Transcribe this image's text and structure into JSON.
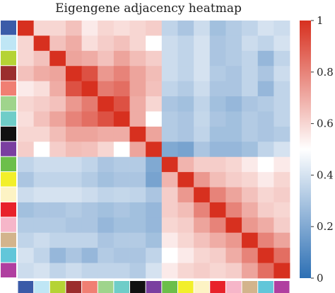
{
  "chart_data": {
    "type": "heatmap",
    "title": "Eigengene adjacency heatmap",
    "xlabel": "",
    "ylabel": "",
    "n": 17,
    "module_colors": [
      "#3b5ba8",
      "#bfe6f5",
      "#b5d335",
      "#9b2d2d",
      "#f07f73",
      "#9fd48c",
      "#6fcdc8",
      "#111111",
      "#7a3fa0",
      "#6cbf4a",
      "#f2ef2a",
      "#fdf3c4",
      "#e8222a",
      "#f6b6c9",
      "#d3b48c",
      "#62c6d9",
      "#b03fa0"
    ],
    "values": [
      [
        1.0,
        0.6,
        0.6,
        0.65,
        0.55,
        0.6,
        0.58,
        0.6,
        0.62,
        0.35,
        0.3,
        0.38,
        0.28,
        0.32,
        0.35,
        0.4,
        0.38
      ],
      [
        0.6,
        1.0,
        0.65,
        0.7,
        0.58,
        0.62,
        0.65,
        0.6,
        0.5,
        0.38,
        0.35,
        0.4,
        0.3,
        0.32,
        0.38,
        0.35,
        0.4
      ],
      [
        0.6,
        0.65,
        1.0,
        0.72,
        0.7,
        0.65,
        0.72,
        0.66,
        0.62,
        0.38,
        0.35,
        0.4,
        0.3,
        0.32,
        0.35,
        0.25,
        0.35
      ],
      [
        0.65,
        0.7,
        0.72,
        1.0,
        0.92,
        0.75,
        0.8,
        0.72,
        0.66,
        0.38,
        0.35,
        0.4,
        0.32,
        0.3,
        0.35,
        0.3,
        0.38
      ],
      [
        0.55,
        0.58,
        0.7,
        0.92,
        1.0,
        0.82,
        0.85,
        0.72,
        0.65,
        0.35,
        0.32,
        0.38,
        0.3,
        0.3,
        0.35,
        0.25,
        0.35
      ],
      [
        0.6,
        0.62,
        0.65,
        0.75,
        0.82,
        1.0,
        0.92,
        0.7,
        0.6,
        0.3,
        0.28,
        0.35,
        0.28,
        0.25,
        0.3,
        0.32,
        0.35
      ],
      [
        0.58,
        0.65,
        0.72,
        0.8,
        0.85,
        0.92,
        1.0,
        0.7,
        0.5,
        0.32,
        0.3,
        0.36,
        0.3,
        0.28,
        0.32,
        0.3,
        0.35
      ],
      [
        0.6,
        0.6,
        0.66,
        0.72,
        0.72,
        0.7,
        0.7,
        1.0,
        0.72,
        0.32,
        0.3,
        0.35,
        0.28,
        0.28,
        0.32,
        0.3,
        0.32
      ],
      [
        0.62,
        0.5,
        0.62,
        0.66,
        0.65,
        0.6,
        0.5,
        0.72,
        1.0,
        0.2,
        0.18,
        0.3,
        0.25,
        0.25,
        0.28,
        0.35,
        0.4
      ],
      [
        0.35,
        0.38,
        0.38,
        0.38,
        0.35,
        0.3,
        0.32,
        0.32,
        0.2,
        1.0,
        0.68,
        0.62,
        0.62,
        0.6,
        0.55,
        0.5,
        0.55
      ],
      [
        0.3,
        0.35,
        0.35,
        0.35,
        0.32,
        0.28,
        0.3,
        0.3,
        0.18,
        0.68,
        1.0,
        0.75,
        0.66,
        0.62,
        0.6,
        0.55,
        0.6
      ],
      [
        0.38,
        0.4,
        0.4,
        0.4,
        0.38,
        0.35,
        0.36,
        0.35,
        0.3,
        0.62,
        0.75,
        1.0,
        0.8,
        0.72,
        0.65,
        0.6,
        0.62
      ],
      [
        0.28,
        0.3,
        0.3,
        0.32,
        0.3,
        0.28,
        0.3,
        0.28,
        0.25,
        0.62,
        0.66,
        0.8,
        1.0,
        0.8,
        0.7,
        0.62,
        0.6
      ],
      [
        0.32,
        0.32,
        0.32,
        0.3,
        0.3,
        0.25,
        0.28,
        0.28,
        0.25,
        0.6,
        0.62,
        0.72,
        0.8,
        1.0,
        0.75,
        0.7,
        0.62
      ],
      [
        0.35,
        0.38,
        0.35,
        0.35,
        0.35,
        0.3,
        0.32,
        0.32,
        0.28,
        0.55,
        0.6,
        0.65,
        0.7,
        0.75,
        1.0,
        0.8,
        0.72
      ],
      [
        0.4,
        0.35,
        0.25,
        0.3,
        0.25,
        0.32,
        0.3,
        0.3,
        0.35,
        0.5,
        0.55,
        0.6,
        0.62,
        0.7,
        0.8,
        1.0,
        0.85
      ],
      [
        0.38,
        0.4,
        0.35,
        0.38,
        0.35,
        0.35,
        0.35,
        0.32,
        0.4,
        0.55,
        0.6,
        0.62,
        0.6,
        0.62,
        0.72,
        0.85,
        1.0
      ]
    ],
    "colorbar": {
      "range": [
        0,
        1
      ],
      "ticks": [
        0,
        0.2,
        0.4,
        0.6,
        0.8,
        1
      ],
      "tick_labels": [
        "0",
        "0.2",
        "0.4",
        "0.6",
        "0.8",
        "1"
      ],
      "low_color": "#2c6fb4",
      "mid_color": "#ffffff",
      "high_color": "#d7301f"
    },
    "grid": false,
    "legend": "right"
  }
}
